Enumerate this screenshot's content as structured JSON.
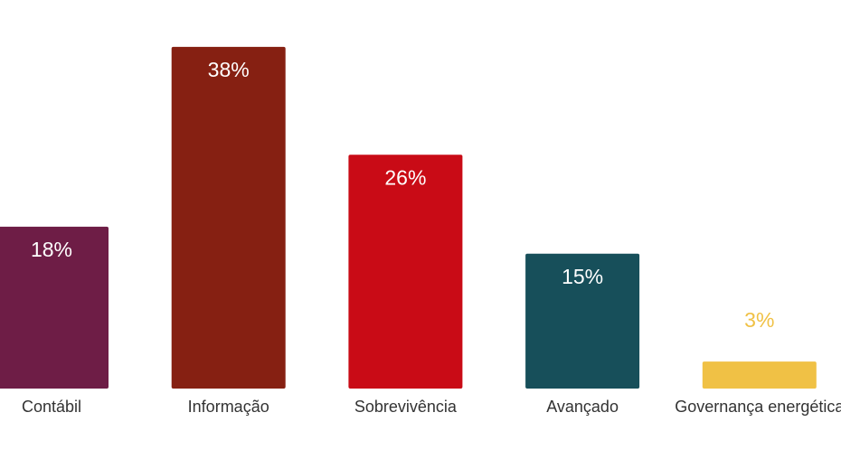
{
  "chart_data": {
    "type": "bar",
    "categories": [
      "Contábil",
      "Informação",
      "Sobrevivência",
      "Avançado",
      "Governança energética"
    ],
    "values": [
      18,
      38,
      26,
      15,
      3
    ],
    "value_labels": [
      "18%",
      "38%",
      "26%",
      "15%",
      "3%"
    ],
    "colors": [
      "#6e1d46",
      "#862012",
      "#c90b16",
      "#174f5a",
      "#f0c145"
    ],
    "ylim": [
      0,
      40
    ]
  }
}
